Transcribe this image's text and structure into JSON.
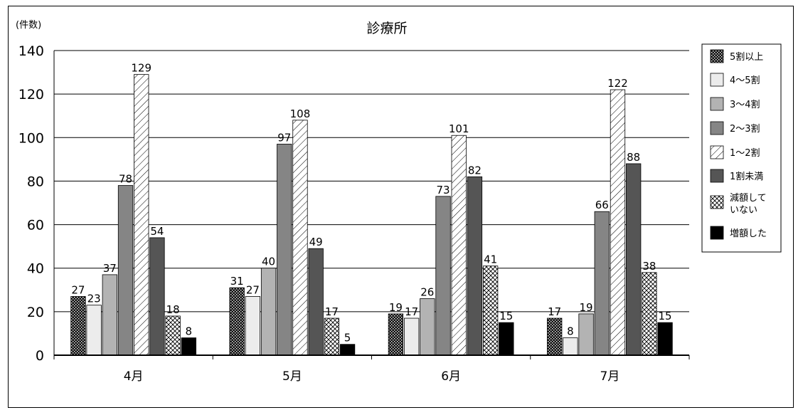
{
  "chart_data": {
    "type": "bar",
    "title": "診療所",
    "ylabel": "(件数)",
    "xlabel": "",
    "ylim": [
      0,
      140
    ],
    "yticks": [
      0,
      20,
      40,
      60,
      80,
      100,
      120,
      140
    ],
    "grid": true,
    "legend_position": "right",
    "categories": [
      "4月",
      "5月",
      "6月",
      "7月"
    ],
    "series": [
      {
        "name": "5割以上",
        "values": [
          27,
          31,
          19,
          17
        ],
        "fill": "dots-dark"
      },
      {
        "name": "4～5割",
        "values": [
          23,
          27,
          17,
          8
        ],
        "fill": "#ececec"
      },
      {
        "name": "3～4割",
        "values": [
          37,
          40,
          26,
          19
        ],
        "fill": "#b3b3b3"
      },
      {
        "name": "2～3割",
        "values": [
          78,
          97,
          73,
          66
        ],
        "fill": "#858585"
      },
      {
        "name": "1～2割",
        "values": [
          129,
          108,
          101,
          122
        ],
        "fill": "diagonal-lines"
      },
      {
        "name": "1割未満",
        "values": [
          54,
          49,
          82,
          88
        ],
        "fill": "#555555"
      },
      {
        "name": "減額していない",
        "values": [
          18,
          17,
          41,
          38
        ],
        "fill": "crosshatch"
      },
      {
        "name": "増額した",
        "values": [
          8,
          5,
          15,
          15
        ],
        "fill": "#000000"
      }
    ]
  },
  "legend": {
    "items": [
      {
        "line1": "5割以上",
        "line2": ""
      },
      {
        "line1": "4～5割",
        "line2": ""
      },
      {
        "line1": "3～4割",
        "line2": ""
      },
      {
        "line1": "2～3割",
        "line2": ""
      },
      {
        "line1": "1～2割",
        "line2": ""
      },
      {
        "line1": "1割未満",
        "line2": ""
      },
      {
        "line1": "減額して",
        "line2": "いない"
      },
      {
        "line1": "増額した",
        "line2": ""
      }
    ]
  }
}
